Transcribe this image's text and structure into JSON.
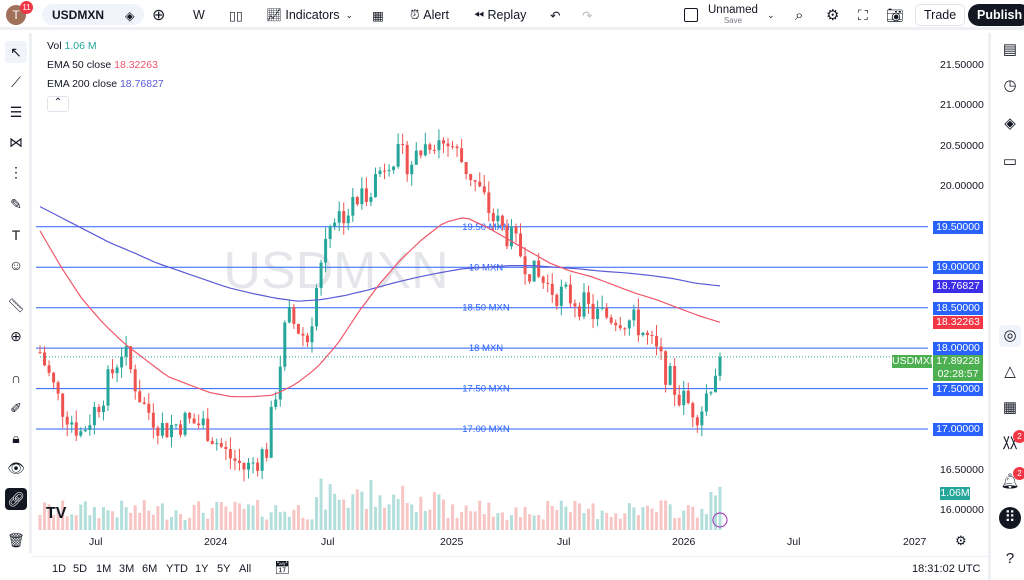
{
  "header": {
    "avatar_letter": "T",
    "notifications": "11",
    "symbol": "USDMXN",
    "interval": "W",
    "indicators": "Indicators",
    "alert": "Alert",
    "replay": "Replay",
    "layout_name": "Unnamed",
    "layout_status": "Save",
    "trade": "Trade",
    "publish": "Publish"
  },
  "legend": {
    "vol_label": "Vol",
    "vol_value": "1.06 M",
    "ema50_label": "EMA 50 close",
    "ema50_value": "18.32263",
    "ema200_label": "EMA 200 close",
    "ema200_value": "18.76827"
  },
  "colors": {
    "up": "#26a69a",
    "down": "#ef5350",
    "ema50": "#f0566b",
    "ema200": "#5b5bd6",
    "level": "#2962ff"
  },
  "watermark": "USDMXN",
  "levels": [
    {
      "price": 19.5,
      "label": "19.50 MXN",
      "axis": "19.50000"
    },
    {
      "price": 19.0,
      "label": "19 MXN",
      "axis": "19.00000"
    },
    {
      "price": 18.5,
      "label": "18.50 MXN",
      "axis": "18.50000"
    },
    {
      "price": 18.0,
      "label": "18 MXN",
      "axis": "18.00000"
    },
    {
      "price": 17.5,
      "label": "17.50 MXN",
      "axis": "17.50000"
    },
    {
      "price": 17.0,
      "label": "17.00 MXN",
      "axis": "17.00000"
    }
  ],
  "price_ticks": [
    "21.50000",
    "21.00000",
    "20.50000",
    "20.00000",
    "16.50000",
    "16.00000"
  ],
  "axis_labels": {
    "ema200": "18.76827",
    "ema50": "18.32263",
    "symbol_tag": "USDMXN",
    "last_price": "17.89228",
    "countdown": "02:28:57",
    "volume": "1.06M"
  },
  "time_ticks": [
    "Jul",
    "2024",
    "Jul",
    "2025",
    "Jul",
    "2026",
    "Jul",
    "2027"
  ],
  "bottom": {
    "ranges": [
      "1D",
      "5D",
      "1M",
      "3M",
      "6M",
      "YTD",
      "1Y",
      "5Y",
      "All"
    ],
    "clock": "18:31:02 UTC"
  },
  "sidebar_badges": {
    "ideas": "2",
    "alerts": "2"
  },
  "chart_data": {
    "type": "candlestick",
    "interval": "weekly",
    "ylim": [
      15.9,
      21.6
    ],
    "monthly_closes": [
      17.95,
      17.3,
      16.95,
      17.4,
      18.0,
      17.3,
      17.0,
      17.1,
      17.05,
      16.7,
      16.5,
      16.75,
      18.4,
      18.1,
      19.6,
      19.7,
      20.0,
      20.4,
      20.3,
      20.6,
      20.5,
      20.1,
      19.6,
      19.3,
      18.9,
      18.7,
      18.6,
      18.4,
      18.4,
      18.3,
      17.9,
      17.4,
      17.2,
      17.89
    ],
    "ema50": [
      19.45,
      19.0,
      18.6,
      18.3,
      18.05,
      17.85,
      17.65,
      17.55,
      17.45,
      17.4,
      17.4,
      17.42,
      17.55,
      17.75,
      18.05,
      18.45,
      18.8,
      19.1,
      19.35,
      19.55,
      19.62,
      19.5,
      19.35,
      19.2,
      19.05,
      18.95,
      18.88,
      18.78,
      18.68,
      18.6,
      18.5,
      18.4,
      18.32
    ],
    "ema200": [
      19.75,
      19.6,
      19.45,
      19.3,
      19.18,
      19.05,
      18.95,
      18.85,
      18.75,
      18.68,
      18.62,
      18.58,
      18.6,
      18.65,
      18.72,
      18.8,
      18.87,
      18.93,
      18.98,
      19.0,
      19.02,
      19.02,
      19.0,
      18.98,
      18.95,
      18.93,
      18.9,
      18.86,
      18.8,
      18.77
    ],
    "last": 17.89228
  }
}
